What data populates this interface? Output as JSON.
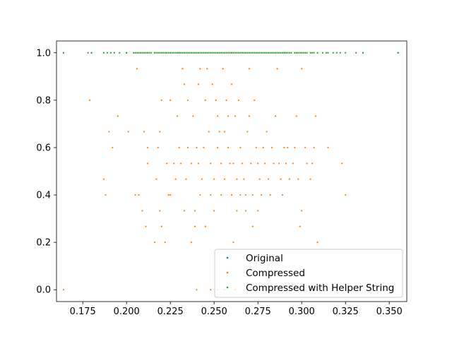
{
  "chart_data": {
    "type": "scatter",
    "title": "",
    "xlabel": "",
    "ylabel": "",
    "xlim": [
      0.16,
      0.36
    ],
    "ylim": [
      -0.05,
      1.05
    ],
    "grid": false,
    "legend_position": "lower-right",
    "x_ticks": [
      0.175,
      0.2,
      0.225,
      0.25,
      0.275,
      0.3,
      0.325,
      0.35
    ],
    "x_tick_labels": [
      "0.175",
      "0.200",
      "0.225",
      "0.250",
      "0.275",
      "0.300",
      "0.325",
      "0.350"
    ],
    "y_ticks": [
      0.0,
      0.2,
      0.4,
      0.6,
      0.8,
      1.0
    ],
    "y_tick_labels": [
      "0.0",
      "0.2",
      "0.4",
      "0.6",
      "0.8",
      "1.0"
    ],
    "series": [
      {
        "name": "Original",
        "color": "#1f77b4",
        "points": [
          [
            0.164,
            1.0
          ],
          [
            0.18,
            1.0
          ],
          [
            0.2,
            1.0
          ],
          [
            0.23,
            1.0
          ],
          [
            0.26,
            1.0
          ],
          [
            0.29,
            1.0
          ],
          [
            0.335,
            1.0
          ],
          [
            0.355,
            1.0
          ]
        ]
      },
      {
        "name": "Compressed",
        "color": "#ff7f0e",
        "points": [
          [
            0.164,
            0.0
          ],
          [
            0.24,
            0.0
          ],
          [
            0.248,
            0.0
          ],
          [
            0.252,
            0.0
          ],
          [
            0.256,
            0.0
          ],
          [
            0.262,
            0.0
          ],
          [
            0.179,
            0.8
          ],
          [
            0.187,
            0.467
          ],
          [
            0.188,
            0.4
          ],
          [
            0.19,
            0.667
          ],
          [
            0.192,
            0.6
          ],
          [
            0.195,
            0.733
          ],
          [
            0.201,
            0.667
          ],
          [
            0.205,
            0.4
          ],
          [
            0.206,
            0.933
          ],
          [
            0.207,
            0.4
          ],
          [
            0.209,
            0.333
          ],
          [
            0.21,
            0.667
          ],
          [
            0.211,
            0.267
          ],
          [
            0.212,
            0.533
          ],
          [
            0.212,
            0.6
          ],
          [
            0.216,
            0.2
          ],
          [
            0.217,
            0.467
          ],
          [
            0.218,
            0.6
          ],
          [
            0.219,
            0.667
          ],
          [
            0.219,
            0.333
          ],
          [
            0.22,
            0.8
          ],
          [
            0.22,
            0.267
          ],
          [
            0.222,
            0.2
          ],
          [
            0.223,
            0.533
          ],
          [
            0.224,
            0.4
          ],
          [
            0.225,
            0.8
          ],
          [
            0.225,
            0.4
          ],
          [
            0.227,
            0.533
          ],
          [
            0.228,
            0.467
          ],
          [
            0.229,
            0.733
          ],
          [
            0.23,
            0.6
          ],
          [
            0.231,
            0.533
          ],
          [
            0.232,
            0.933
          ],
          [
            0.233,
            0.333
          ],
          [
            0.233,
            0.867
          ],
          [
            0.234,
            0.467
          ],
          [
            0.235,
            0.8
          ],
          [
            0.235,
            0.6
          ],
          [
            0.237,
            0.533
          ],
          [
            0.237,
            0.2
          ],
          [
            0.238,
            0.733
          ],
          [
            0.239,
            0.333
          ],
          [
            0.239,
            0.267
          ],
          [
            0.24,
            0.6
          ],
          [
            0.241,
            0.533
          ],
          [
            0.241,
            0.867
          ],
          [
            0.242,
            0.4
          ],
          [
            0.242,
            0.933
          ],
          [
            0.243,
            0.467
          ],
          [
            0.244,
            0.6
          ],
          [
            0.245,
            0.267
          ],
          [
            0.245,
            0.8
          ],
          [
            0.246,
            0.933
          ],
          [
            0.247,
            0.667
          ],
          [
            0.248,
            0.533
          ],
          [
            0.248,
            0.4
          ],
          [
            0.249,
            0.867
          ],
          [
            0.25,
            0.333
          ],
          [
            0.25,
            0.467
          ],
          [
            0.251,
            0.8
          ],
          [
            0.252,
            0.6
          ],
          [
            0.252,
            0.733
          ],
          [
            0.253,
            0.667
          ],
          [
            0.254,
            0.533
          ],
          [
            0.254,
            0.4
          ],
          [
            0.255,
            0.933
          ],
          [
            0.256,
            0.667
          ],
          [
            0.256,
            0.467
          ],
          [
            0.257,
            0.8
          ],
          [
            0.258,
            0.6
          ],
          [
            0.258,
            0.733
          ],
          [
            0.259,
            0.533
          ],
          [
            0.26,
            0.4
          ],
          [
            0.26,
            0.867
          ],
          [
            0.261,
            0.533
          ],
          [
            0.261,
            0.2
          ],
          [
            0.262,
            0.733
          ],
          [
            0.263,
            0.333
          ],
          [
            0.263,
            0.467
          ],
          [
            0.264,
            0.8
          ],
          [
            0.265,
            0.4
          ],
          [
            0.265,
            0.6
          ],
          [
            0.266,
            0.533
          ],
          [
            0.267,
            0.467
          ],
          [
            0.268,
            0.4
          ],
          [
            0.268,
            0.333
          ],
          [
            0.269,
            0.667
          ],
          [
            0.27,
            0.733
          ],
          [
            0.27,
            0.933
          ],
          [
            0.271,
            0.533
          ],
          [
            0.272,
            0.267
          ],
          [
            0.272,
            0.4
          ],
          [
            0.273,
            0.8
          ],
          [
            0.274,
            0.6
          ],
          [
            0.275,
            0.533
          ],
          [
            0.275,
            0.333
          ],
          [
            0.276,
            0.467
          ],
          [
            0.277,
            0.4
          ],
          [
            0.278,
            0.6
          ],
          [
            0.279,
            0.533
          ],
          [
            0.28,
            0.667
          ],
          [
            0.281,
            0.467
          ],
          [
            0.282,
            0.4
          ],
          [
            0.283,
            0.6
          ],
          [
            0.284,
            0.533
          ],
          [
            0.285,
            0.733
          ],
          [
            0.286,
            0.933
          ],
          [
            0.287,
            0.533
          ],
          [
            0.288,
            0.467
          ],
          [
            0.289,
            0.4
          ],
          [
            0.29,
            0.6
          ],
          [
            0.291,
            0.533
          ],
          [
            0.292,
            0.6
          ],
          [
            0.293,
            0.467
          ],
          [
            0.295,
            0.533
          ],
          [
            0.296,
            0.6
          ],
          [
            0.297,
            0.733
          ],
          [
            0.298,
            0.467
          ],
          [
            0.299,
            0.267
          ],
          [
            0.3,
            0.933
          ],
          [
            0.3,
            0.333
          ],
          [
            0.302,
            0.6
          ],
          [
            0.303,
            0.533
          ],
          [
            0.305,
            0.467
          ],
          [
            0.306,
            0.533
          ],
          [
            0.307,
            0.6
          ],
          [
            0.308,
            0.733
          ],
          [
            0.309,
            0.2
          ],
          [
            0.315,
            0.6
          ],
          [
            0.323,
            0.533
          ],
          [
            0.325,
            0.4
          ]
        ]
      },
      {
        "name": "Compressed with Helper String",
        "color": "#2ca02c",
        "points": [
          [
            0.164,
            1.0
          ],
          [
            0.178,
            1.0
          ],
          [
            0.18,
            1.0
          ],
          [
            0.187,
            1.0
          ],
          [
            0.189,
            1.0
          ],
          [
            0.191,
            1.0
          ],
          [
            0.193,
            1.0
          ],
          [
            0.196,
            1.0
          ],
          [
            0.2,
            1.0
          ],
          [
            0.204,
            1.0
          ],
          [
            0.205,
            1.0
          ],
          [
            0.206,
            1.0
          ],
          [
            0.207,
            1.0
          ],
          [
            0.208,
            1.0
          ],
          [
            0.209,
            1.0
          ],
          [
            0.21,
            1.0
          ],
          [
            0.211,
            1.0
          ],
          [
            0.212,
            1.0
          ],
          [
            0.213,
            1.0
          ],
          [
            0.214,
            1.0
          ],
          [
            0.216,
            1.0
          ],
          [
            0.217,
            1.0
          ],
          [
            0.218,
            1.0
          ],
          [
            0.219,
            1.0
          ],
          [
            0.22,
            1.0
          ],
          [
            0.221,
            1.0
          ],
          [
            0.222,
            1.0
          ],
          [
            0.223,
            1.0
          ],
          [
            0.224,
            1.0
          ],
          [
            0.225,
            1.0
          ],
          [
            0.226,
            1.0
          ],
          [
            0.227,
            1.0
          ],
          [
            0.228,
            1.0
          ],
          [
            0.229,
            1.0
          ],
          [
            0.23,
            1.0
          ],
          [
            0.231,
            1.0
          ],
          [
            0.232,
            1.0
          ],
          [
            0.233,
            1.0
          ],
          [
            0.234,
            1.0
          ],
          [
            0.235,
            1.0
          ],
          [
            0.236,
            1.0
          ],
          [
            0.237,
            1.0
          ],
          [
            0.238,
            1.0
          ],
          [
            0.239,
            1.0
          ],
          [
            0.24,
            1.0
          ],
          [
            0.241,
            1.0
          ],
          [
            0.242,
            1.0
          ],
          [
            0.243,
            1.0
          ],
          [
            0.244,
            1.0
          ],
          [
            0.245,
            1.0
          ],
          [
            0.246,
            1.0
          ],
          [
            0.247,
            1.0
          ],
          [
            0.248,
            1.0
          ],
          [
            0.249,
            1.0
          ],
          [
            0.25,
            1.0
          ],
          [
            0.251,
            1.0
          ],
          [
            0.252,
            1.0
          ],
          [
            0.253,
            1.0
          ],
          [
            0.254,
            1.0
          ],
          [
            0.255,
            1.0
          ],
          [
            0.256,
            1.0
          ],
          [
            0.257,
            1.0
          ],
          [
            0.258,
            1.0
          ],
          [
            0.259,
            1.0
          ],
          [
            0.26,
            1.0
          ],
          [
            0.261,
            1.0
          ],
          [
            0.262,
            1.0
          ],
          [
            0.263,
            1.0
          ],
          [
            0.264,
            1.0
          ],
          [
            0.265,
            1.0
          ],
          [
            0.266,
            1.0
          ],
          [
            0.267,
            1.0
          ],
          [
            0.268,
            1.0
          ],
          [
            0.269,
            1.0
          ],
          [
            0.27,
            1.0
          ],
          [
            0.271,
            1.0
          ],
          [
            0.272,
            1.0
          ],
          [
            0.273,
            1.0
          ],
          [
            0.274,
            1.0
          ],
          [
            0.275,
            1.0
          ],
          [
            0.276,
            1.0
          ],
          [
            0.277,
            1.0
          ],
          [
            0.278,
            1.0
          ],
          [
            0.279,
            1.0
          ],
          [
            0.28,
            1.0
          ],
          [
            0.281,
            1.0
          ],
          [
            0.282,
            1.0
          ],
          [
            0.283,
            1.0
          ],
          [
            0.284,
            1.0
          ],
          [
            0.285,
            1.0
          ],
          [
            0.286,
            1.0
          ],
          [
            0.287,
            1.0
          ],
          [
            0.288,
            1.0
          ],
          [
            0.289,
            1.0
          ],
          [
            0.29,
            1.0
          ],
          [
            0.291,
            1.0
          ],
          [
            0.292,
            1.0
          ],
          [
            0.293,
            1.0
          ],
          [
            0.294,
            1.0
          ],
          [
            0.296,
            1.0
          ],
          [
            0.297,
            1.0
          ],
          [
            0.298,
            1.0
          ],
          [
            0.299,
            1.0
          ],
          [
            0.3,
            1.0
          ],
          [
            0.301,
            1.0
          ],
          [
            0.302,
            1.0
          ],
          [
            0.303,
            1.0
          ],
          [
            0.305,
            1.0
          ],
          [
            0.306,
            1.0
          ],
          [
            0.307,
            1.0
          ],
          [
            0.309,
            1.0
          ],
          [
            0.312,
            1.0
          ],
          [
            0.314,
            1.0
          ],
          [
            0.315,
            1.0
          ],
          [
            0.318,
            1.0
          ],
          [
            0.32,
            1.0
          ],
          [
            0.322,
            1.0
          ],
          [
            0.325,
            1.0
          ],
          [
            0.331,
            1.0
          ],
          [
            0.335,
            1.0
          ],
          [
            0.355,
            1.0
          ]
        ]
      }
    ]
  }
}
